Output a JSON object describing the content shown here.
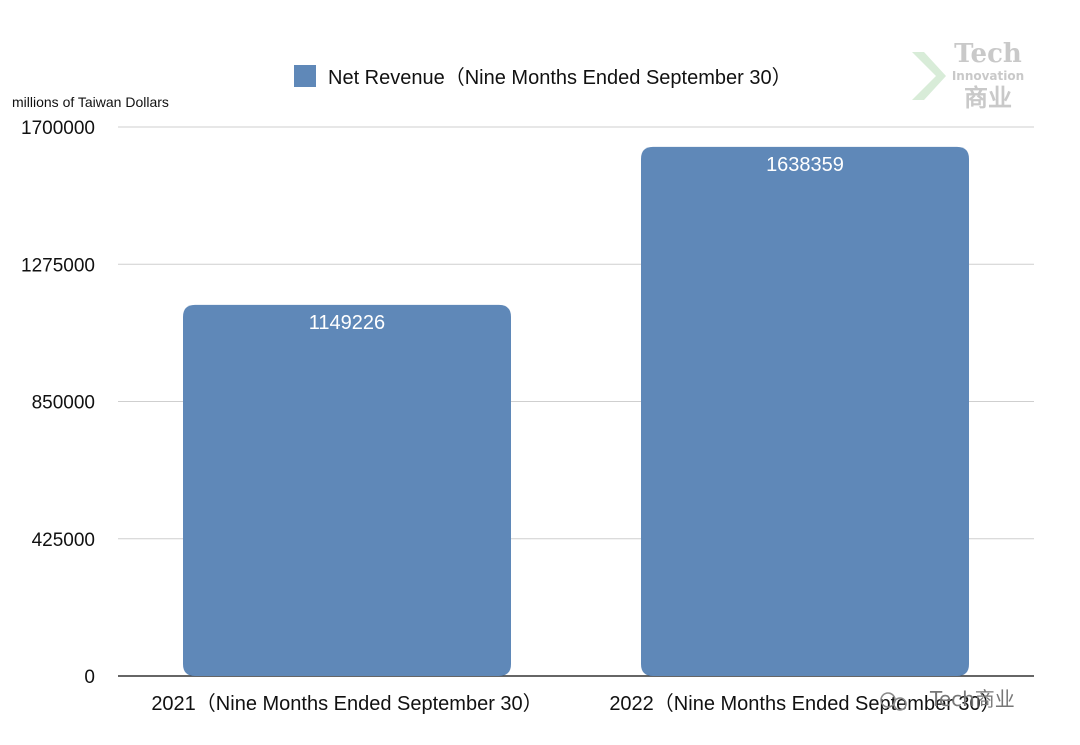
{
  "chart_data": {
    "type": "bar",
    "unit_label": "millions of Taiwan Dollars",
    "categories": [
      "2021（Nine Months Ended September 30）",
      "2022（Nine Months Ended September 30）"
    ],
    "series": [
      {
        "name": "Net Revenue（Nine Months Ended September 30）",
        "values": [
          1149226,
          1638359
        ],
        "color": "#5f88b8"
      }
    ],
    "data_labels": [
      "1149226",
      "1638359"
    ],
    "ylim": [
      0,
      1700000
    ],
    "yticks": [
      0,
      425000,
      850000,
      1275000,
      1700000
    ],
    "ytick_labels": [
      "0",
      "425000",
      "850000",
      "1275000",
      "1700000"
    ],
    "grid": true,
    "legend_position": "top"
  },
  "watermarks": {
    "logo_top": {
      "word1": "Tech",
      "word2": "Innovation",
      "word3": "商业"
    },
    "bottom": "Tech商业"
  },
  "colors": {
    "bar": "#5f88b8",
    "grid": "#cfcfcf",
    "axis": "#333333"
  }
}
